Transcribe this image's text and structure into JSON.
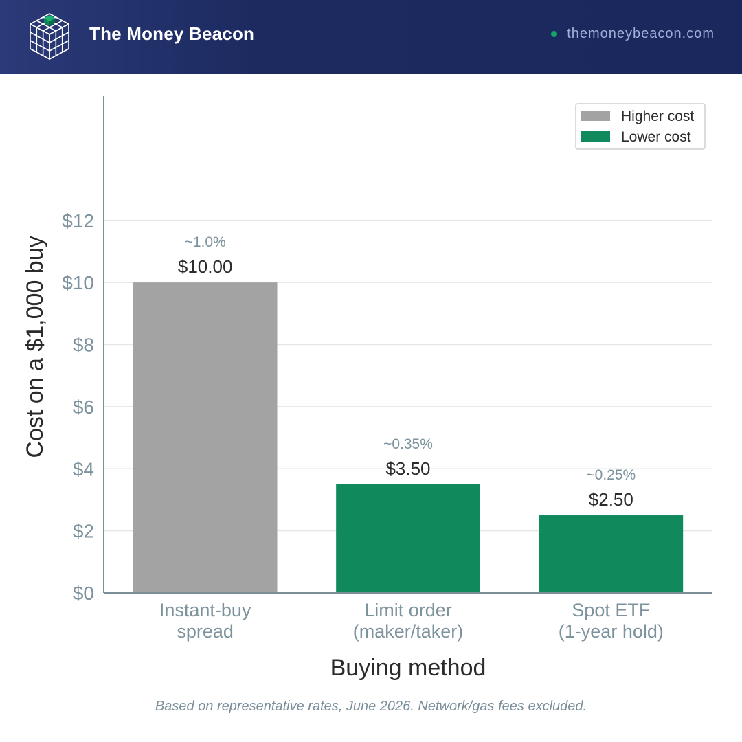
{
  "header": {
    "brand": "The Money Beacon",
    "site": "themoneybeacon.com",
    "logo_icon": "cube-grid-icon"
  },
  "colors": {
    "header_bg": "#1c2a60",
    "higher_cost": "#a3a3a3",
    "lower_cost": "#10895d",
    "axis_text": "#7c929c",
    "label_text": "#2b2b2b"
  },
  "chart_data": {
    "type": "bar",
    "title": "",
    "xlabel": "Buying method",
    "ylabel": "Cost on a $1,000 buy",
    "categories": [
      [
        "Instant-buy",
        "spread"
      ],
      [
        "Limit order",
        "(maker/taker)"
      ],
      [
        "Spot ETF",
        "(1-year hold)"
      ]
    ],
    "values": [
      10.0,
      3.5,
      2.5
    ],
    "value_labels": [
      "$10.00",
      "$3.50",
      "$2.50"
    ],
    "percent_labels": [
      "~1.0%",
      "~0.35%",
      "~0.25%"
    ],
    "bar_groups": [
      "Higher cost",
      "Lower cost",
      "Lower cost"
    ],
    "legend": [
      {
        "label": "Higher cost",
        "color": "#a3a3a3"
      },
      {
        "label": "Lower cost",
        "color": "#10895d"
      }
    ],
    "legend_position": "top-right",
    "yticks": [
      0,
      2,
      4,
      6,
      8,
      10,
      12
    ],
    "ytick_labels": [
      "$0",
      "$2",
      "$4",
      "$6",
      "$8",
      "$10",
      "$12"
    ],
    "ylim": [
      0,
      16
    ],
    "grid": true
  },
  "footnote": "Based on representative rates, June 2026. Network/gas fees excluded."
}
